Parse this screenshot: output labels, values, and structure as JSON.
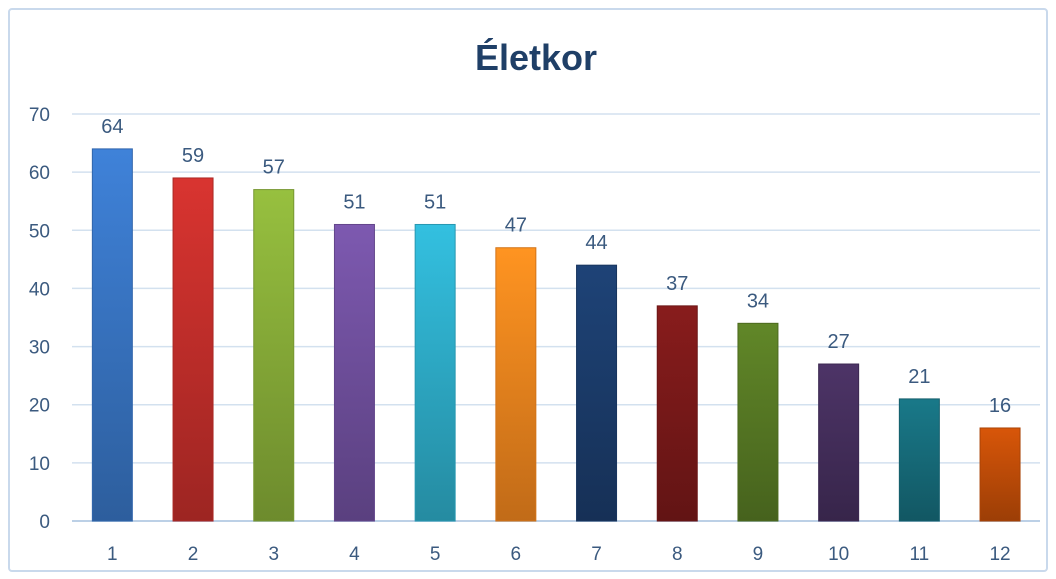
{
  "chart_data": {
    "type": "bar",
    "title": "Életkor",
    "xlabel": "",
    "ylabel": "",
    "categories": [
      "1",
      "2",
      "3",
      "4",
      "5",
      "6",
      "7",
      "8",
      "9",
      "10",
      "11",
      "12"
    ],
    "values": [
      64,
      59,
      57,
      51,
      51,
      47,
      44,
      37,
      34,
      27,
      21,
      16
    ],
    "ylim": [
      0,
      70
    ],
    "yticks": [
      0,
      10,
      20,
      30,
      40,
      50,
      60,
      70
    ],
    "grid": true,
    "legend": "none",
    "data_labels": true,
    "colors": [
      "#3a78c9",
      "#c9302c",
      "#8cb23a",
      "#7452a3",
      "#2fb2cf",
      "#f7891f",
      "#1c3e6e",
      "#7e1a1a",
      "#5a7d25",
      "#47305f",
      "#17707f",
      "#c85008"
    ]
  }
}
